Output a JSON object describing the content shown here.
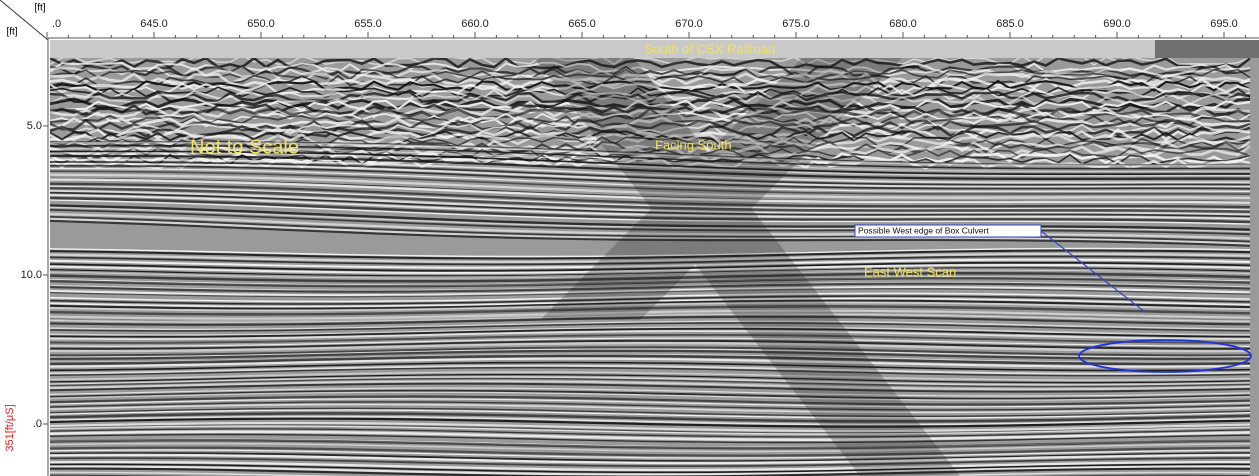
{
  "header": {
    "corner_top_unit": "[ft]",
    "corner_left_unit": "[ft]",
    "banner": "South of CSX Railroad"
  },
  "top_ruler": {
    "ticks": [
      ".0",
      "645.0",
      "650.0",
      "655.0",
      "660.0",
      "665.0",
      "670.0",
      "675.0",
      "680.0",
      "685.0",
      "690.0",
      "695.0"
    ]
  },
  "left_ruler": {
    "ticks": [
      "5.0",
      "10.0",
      ".0"
    ],
    "velocity": "351[ft/μS]"
  },
  "annotations": {
    "scale_note": "Not to Scale",
    "orientation": "Facing South",
    "callout": "Possible West edge of Box Culvert",
    "scan": "East West Scan"
  }
}
